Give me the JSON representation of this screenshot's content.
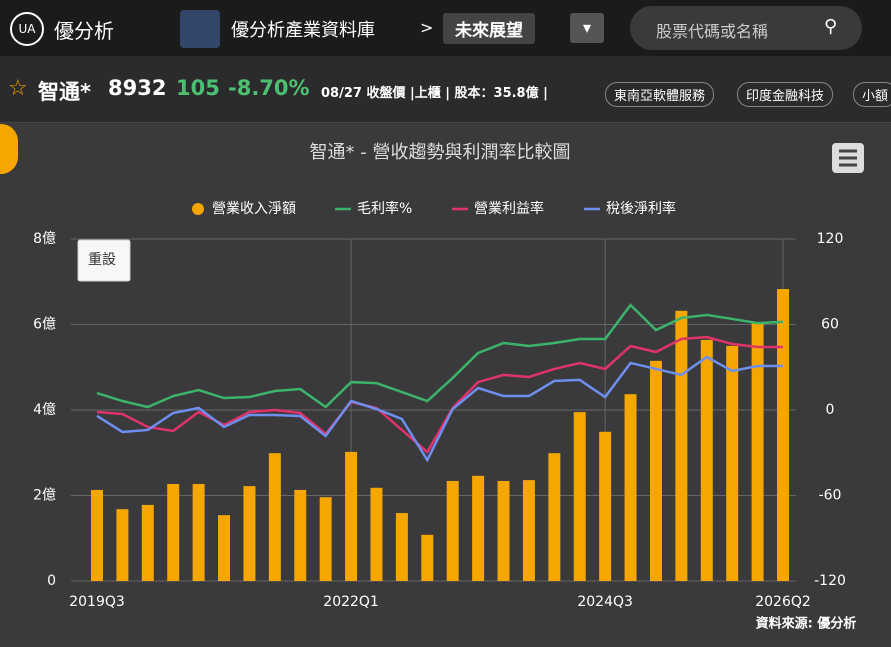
{
  "header": {
    "logo": "優分析",
    "product": "優分析產業資料庫",
    "separator": ">",
    "section": "未來展望",
    "search_placeholder": "股票代碼或名稱"
  },
  "stock": {
    "name": "智通*",
    "code": "8932",
    "price": 105,
    "change": "-8.70%",
    "info": "08/27 收盤價 |上櫃 | 股本：35.8億 |",
    "tags": [
      "東南亞軟體服務",
      "印度金融科技",
      "小額"
    ]
  },
  "chart_data": {
    "type": "bar_line",
    "title": "智通* - 營收趨勢與利潤率比較圖",
    "reset_button": "重設",
    "source": "資料來源: 優分析",
    "categories": [
      "2019Q3",
      null,
      null,
      null,
      null,
      null,
      null,
      null,
      null,
      null,
      "2022Q1",
      null,
      null,
      null,
      null,
      null,
      null,
      null,
      null,
      null,
      "2024Q3",
      null,
      null,
      null,
      null,
      null,
      null,
      "2026Q2"
    ],
    "ylim": [
      0,
      8
    ],
    "yticks": [
      0,
      {
        "value": 2,
        "label": "2億"
      },
      {
        "value": 4,
        "label": "4億"
      },
      {
        "value": 6,
        "label": "6億"
      },
      {
        "value": 8,
        "label": "8億"
      }
    ],
    "y2lim": [
      -120,
      120
    ],
    "y2ticks": [
      -120,
      -60,
      0,
      60,
      120
    ],
    "grid": true,
    "series": [
      {
        "name": "營業收入淨額",
        "type": "bar",
        "color": "#f5a700",
        "values": [
          2.13,
          1.68,
          1.78,
          2.27,
          2.27,
          1.54,
          2.22,
          2.99,
          2.13,
          1.96,
          3.02,
          2.18,
          1.59,
          1.08,
          2.34,
          2.46,
          2.34,
          2.36,
          2.99,
          3.95,
          3.49,
          4.37,
          5.15,
          6.32,
          5.64,
          5.5,
          6.04,
          6.83
        ]
      },
      {
        "name": "毛利率%",
        "type": "line",
        "axis": "y2",
        "color": "#3cb36a",
        "values": [
          11.9,
          6.3,
          2.1,
          9.8,
          14,
          8.4,
          9.1,
          13.3,
          14.7,
          2.1,
          19.6,
          18.9,
          12.6,
          6.3,
          22.5,
          40,
          47,
          44.9,
          47,
          49.8,
          49.8,
          73.7,
          56.1,
          64.6,
          66.7,
          63.9,
          61,
          61.8
        ]
      },
      {
        "name": "營業利益率",
        "type": "line",
        "axis": "y2",
        "color": "#e0336a",
        "values": [
          -1.4,
          -2.8,
          -11.9,
          -14.7,
          -1.4,
          -10.5,
          -1.4,
          0,
          -2.1,
          -16.8,
          5.6,
          1.4,
          -14,
          -29.5,
          1.4,
          19.6,
          24.6,
          23.2,
          28.8,
          33,
          28.8,
          44.9,
          40.7,
          49.8,
          51.2,
          46.3,
          44.2,
          44.2
        ]
      },
      {
        "name": "稅後淨利率",
        "type": "line",
        "axis": "y2",
        "color": "#6e8ff0",
        "values": [
          -4.2,
          -15.4,
          -14,
          -2.1,
          1.4,
          -11.9,
          -3.5,
          -3.5,
          -4.2,
          -18.2,
          6.3,
          0.7,
          -6.3,
          -35.1,
          0.7,
          15.4,
          9.8,
          9.8,
          20.4,
          21.1,
          9.1,
          33,
          28.8,
          24.6,
          37.2,
          27.4,
          30.9,
          30.9
        ]
      }
    ]
  }
}
